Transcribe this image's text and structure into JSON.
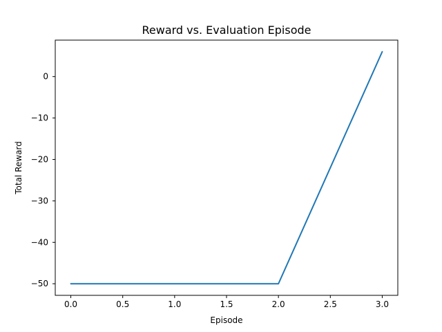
{
  "chart_data": {
    "type": "line",
    "title": "Reward vs. Evaluation Episode",
    "xlabel": "Episode",
    "ylabel": "Total Reward",
    "x": [
      0,
      1,
      2,
      3
    ],
    "series": [
      {
        "values": [
          -50,
          -50,
          -50,
          6
        ],
        "color": "#1f77b4"
      }
    ],
    "xlim": [
      -0.15,
      3.15
    ],
    "ylim": [
      -52.8,
      8.8
    ],
    "xticks": [
      0.0,
      0.5,
      1.0,
      1.5,
      2.0,
      2.5,
      3.0
    ],
    "xtick_labels": [
      "0.0",
      "0.5",
      "1.0",
      "1.5",
      "2.0",
      "2.5",
      "3.0"
    ],
    "yticks": [
      -50,
      -40,
      -30,
      -20,
      -10,
      0
    ],
    "ytick_labels": [
      "−50",
      "−40",
      "−30",
      "−20",
      "−10",
      "0"
    ],
    "grid": false,
    "legend": "none"
  }
}
